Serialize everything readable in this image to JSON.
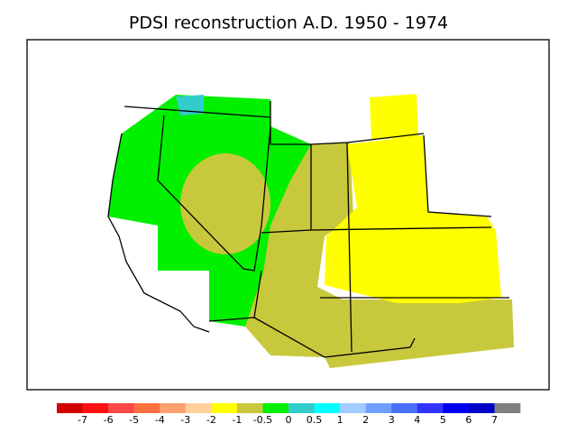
{
  "title": "PDSI reconstruction A.D. 1950 - 1974",
  "colorbar": {
    "labels": [
      -7,
      -6,
      -5,
      -4,
      -3,
      -2,
      -1,
      -0.5,
      0,
      0.5,
      1,
      2,
      3,
      4,
      5,
      6,
      7
    ],
    "colors": [
      "#d00000",
      "#ff1010",
      "#ff4848",
      "#ff7040",
      "#ffa070",
      "#ffd09c",
      "#ffff00",
      "#c8c83c",
      "#00f000",
      "#33cccc",
      "#00ffff",
      "#a0ccff",
      "#70a0ff",
      "#4a70ff",
      "#3333ff",
      "#0000f0",
      "#0000c8",
      "#808080"
    ]
  }
}
